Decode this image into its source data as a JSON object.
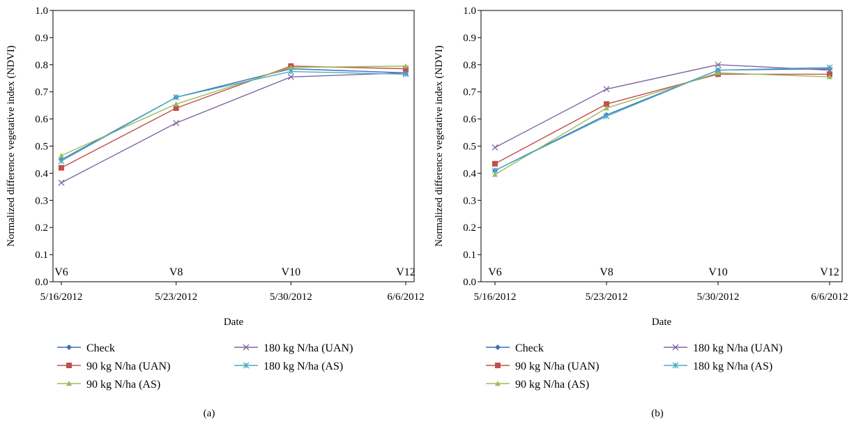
{
  "chart_data": [
    {
      "type": "line",
      "panel_label": "(a)",
      "xlabel": "Date",
      "ylabel": "Normalized difference vegetative index (NDVI)",
      "x": [
        "5/16/2012",
        "5/23/2012",
        "5/30/2012",
        "6/6/2012"
      ],
      "ylim": [
        0.0,
        1.0
      ],
      "yticks": [
        "0.0",
        "0.1",
        "0.2",
        "0.3",
        "0.4",
        "0.5",
        "0.6",
        "0.7",
        "0.8",
        "0.9",
        "1.0"
      ],
      "stage_labels": [
        "V6",
        "V8",
        "V10",
        "V12"
      ],
      "legend_position": "bottom",
      "series": [
        {
          "name": "Check",
          "color": "#3f6fb5",
          "marker": "diamond",
          "values": [
            0.45,
            0.68,
            0.785,
            0.77
          ]
        },
        {
          "name": "90 kg N/ha (UAN)",
          "color": "#c0504d",
          "marker": "square",
          "values": [
            0.42,
            0.64,
            0.795,
            0.785
          ]
        },
        {
          "name": "90 kg N/ha (AS)",
          "color": "#9bbb59",
          "marker": "triangle",
          "values": [
            0.465,
            0.655,
            0.79,
            0.795
          ]
        },
        {
          "name": "180 kg N/ha (UAN)",
          "color": "#8064a2",
          "marker": "x",
          "values": [
            0.365,
            0.585,
            0.755,
            0.77
          ]
        },
        {
          "name": "180 kg N/ha (AS)",
          "color": "#4bacc6",
          "marker": "star",
          "values": [
            0.445,
            0.68,
            0.775,
            0.765
          ]
        }
      ]
    },
    {
      "type": "line",
      "panel_label": "(b)",
      "xlabel": "Date",
      "ylabel": "Normalized difference vegetative index (NDVI)",
      "x": [
        "5/16/2012",
        "5/23/2012",
        "5/30/2012",
        "6/6/2012"
      ],
      "ylim": [
        0.0,
        1.0
      ],
      "yticks": [
        "0.0",
        "0.1",
        "0.2",
        "0.3",
        "0.4",
        "0.5",
        "0.6",
        "0.7",
        "0.8",
        "0.9",
        "1.0"
      ],
      "stage_labels": [
        "V6",
        "V8",
        "V10",
        "V12"
      ],
      "legend_position": "bottom",
      "series": [
        {
          "name": "Check",
          "color": "#3f6fb5",
          "marker": "diamond",
          "values": [
            0.41,
            0.615,
            0.78,
            0.785
          ]
        },
        {
          "name": "90 kg N/ha (UAN)",
          "color": "#c0504d",
          "marker": "square",
          "values": [
            0.435,
            0.655,
            0.765,
            0.765
          ]
        },
        {
          "name": "90 kg N/ha (AS)",
          "color": "#9bbb59",
          "marker": "triangle",
          "values": [
            0.395,
            0.64,
            0.77,
            0.755
          ]
        },
        {
          "name": "180 kg N/ha (UAN)",
          "color": "#8064a2",
          "marker": "x",
          "values": [
            0.495,
            0.71,
            0.8,
            0.78
          ]
        },
        {
          "name": "180 kg N/ha (AS)",
          "color": "#4bacc6",
          "marker": "star",
          "values": [
            0.41,
            0.61,
            0.78,
            0.79
          ]
        }
      ]
    }
  ]
}
